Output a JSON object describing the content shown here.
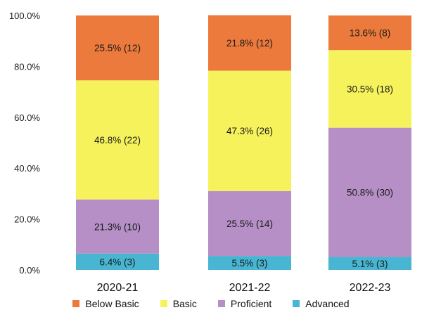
{
  "chart_data": {
    "type": "bar",
    "stacked": true,
    "categories": [
      "2020-21",
      "2021-22",
      "2022-23"
    ],
    "y_ticks": [
      "0.0%",
      "20.0%",
      "40.0%",
      "60.0%",
      "80.0%",
      "100.0%"
    ],
    "ylim": [
      0,
      100
    ],
    "legend_position": "bottom",
    "series": [
      {
        "name": "Advanced",
        "color": "#48b6d2",
        "values": [
          6.4,
          5.5,
          5.1
        ],
        "labels": [
          "6.4% (3)",
          "5.5% (3)",
          "5.1% (3)"
        ]
      },
      {
        "name": "Proficient",
        "color": "#b58fc6",
        "values": [
          21.3,
          25.5,
          50.8
        ],
        "labels": [
          "21.3% (10)",
          "25.5% (14)",
          "50.8% (30)"
        ]
      },
      {
        "name": "Basic",
        "color": "#f6f25c",
        "values": [
          46.8,
          47.3,
          30.5
        ],
        "labels": [
          "46.8% (22)",
          "47.3% (26)",
          "30.5% (18)"
        ]
      },
      {
        "name": "Below Basic",
        "color": "#ec7a3c",
        "values": [
          25.5,
          21.8,
          13.6
        ],
        "labels": [
          "25.5% (12)",
          "21.8% (12)",
          "13.6% (8)"
        ]
      }
    ],
    "legend_order": [
      "Below Basic",
      "Basic",
      "Proficient",
      "Advanced"
    ]
  }
}
